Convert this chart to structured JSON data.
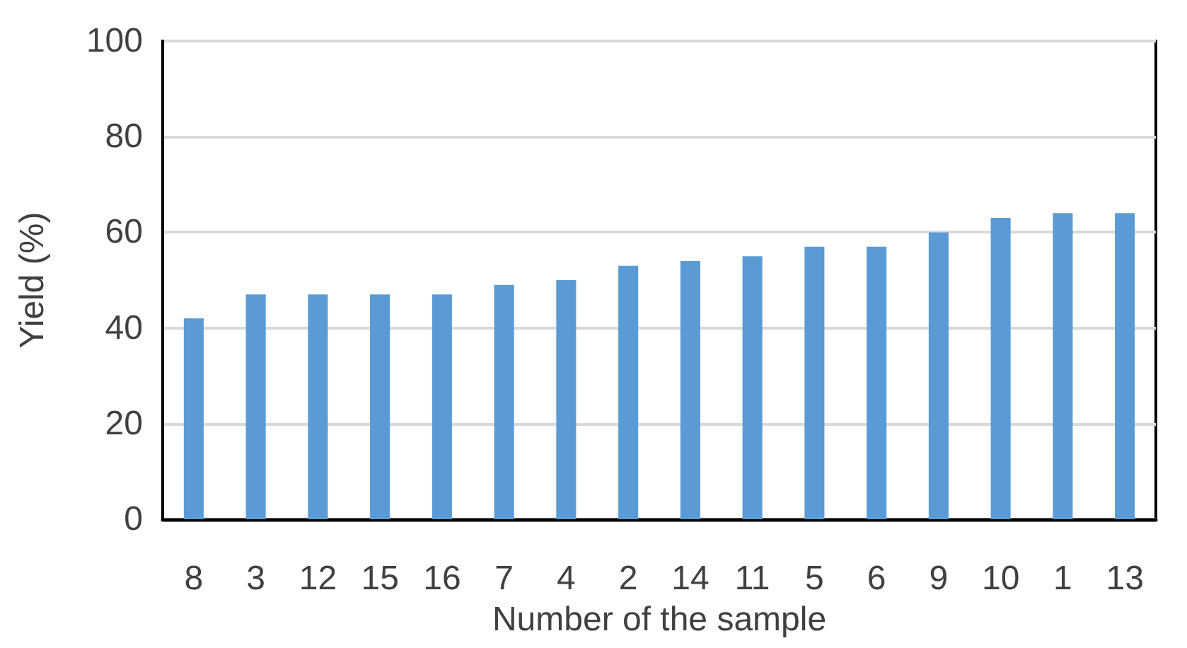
{
  "chart_data": {
    "type": "bar",
    "xlabel": "Number of the sample",
    "ylabel": "Yield (%)",
    "categories": [
      "8",
      "3",
      "12",
      "15",
      "16",
      "7",
      "4",
      "2",
      "14",
      "11",
      "5",
      "6",
      "9",
      "10",
      "1",
      "13"
    ],
    "values": [
      42,
      47,
      47,
      47,
      47,
      49,
      50,
      53,
      54,
      55,
      57,
      57,
      60,
      63,
      64,
      64
    ],
    "color": "#5b9bd5",
    "ylim": [
      0,
      100
    ],
    "yticks": [
      0,
      20,
      40,
      60,
      80,
      100
    ],
    "grid": "y"
  }
}
